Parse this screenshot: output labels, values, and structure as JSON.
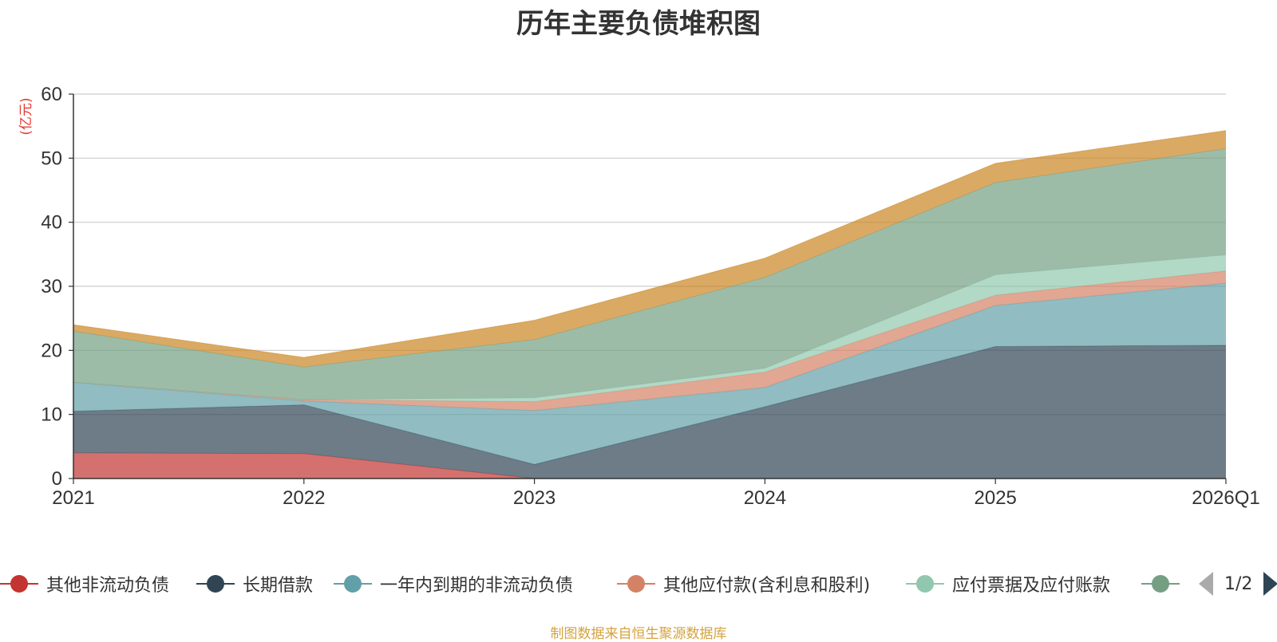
{
  "chart_data": {
    "type": "area",
    "stacked": true,
    "title": "历年主要负债堆积图",
    "ylabel": "(亿元)",
    "xlabel": "",
    "ylim": [
      0,
      60
    ],
    "yticks": [
      0,
      10,
      20,
      30,
      40,
      50,
      60
    ],
    "categories": [
      "2021",
      "2022",
      "2023",
      "2024",
      "2025",
      "2026Q1"
    ],
    "grid": true,
    "series": [
      {
        "name": "其他非流动负债",
        "color": "#c23531",
        "values": [
          4.0,
          3.9,
          0.0,
          0.0,
          0.0,
          0.0
        ]
      },
      {
        "name": "长期借款",
        "color": "#2f4554",
        "values": [
          6.5,
          7.6,
          2.2,
          11.2,
          20.6,
          20.8
        ]
      },
      {
        "name": "一年内到期的非流动负债",
        "color": "#61a0a8",
        "values": [
          4.5,
          0.6,
          8.4,
          3.0,
          6.4,
          9.7
        ]
      },
      {
        "name": "其他应付款(含利息和股利)",
        "color": "#d48265",
        "values": [
          0.0,
          0.2,
          1.4,
          2.4,
          1.6,
          1.9
        ]
      },
      {
        "name": "应付票据及应付账款",
        "color": "#91c7ae",
        "values": [
          0.0,
          0.0,
          0.6,
          0.6,
          3.2,
          2.5
        ]
      },
      {
        "name": "",
        "color": "#749f83",
        "values": [
          8.0,
          5.1,
          9.1,
          14.2,
          14.4,
          16.6
        ]
      },
      {
        "name": "",
        "color": "#ca8622",
        "values": [
          1.0,
          1.5,
          3.0,
          3.0,
          3.0,
          2.8
        ]
      }
    ]
  },
  "legend": {
    "items": [
      {
        "label": "其他非流动负债",
        "color": "#c23531"
      },
      {
        "label": "长期借款",
        "color": "#2f4554"
      },
      {
        "label": "一年内到期的非流动负债",
        "color": "#61a0a8"
      },
      {
        "label": "其他应付款(含利息和股利)",
        "color": "#d48265"
      },
      {
        "label": "应付票据及应付账款",
        "color": "#91c7ae"
      },
      {
        "label": "",
        "color": "#749f83"
      }
    ],
    "page": "1/2"
  },
  "footer": {
    "source": "制图数据来自恒生聚源数据库"
  }
}
